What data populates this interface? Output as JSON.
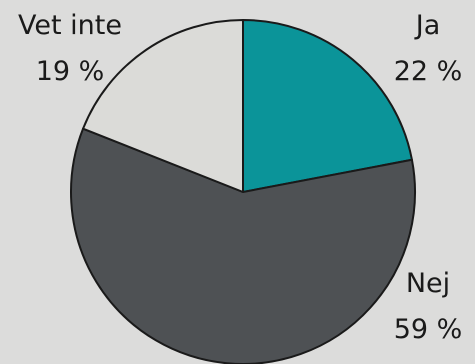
{
  "chart_data": {
    "type": "pie",
    "title": "",
    "categories": [
      "Ja",
      "Nej",
      "Vet inte"
    ],
    "values": [
      22,
      59,
      19
    ],
    "value_labels": [
      "22 %",
      "59 %",
      "19 %"
    ],
    "colors": [
      "#0b9499",
      "#4e5154",
      "#dbdbd8"
    ],
    "start_angle_deg": 0,
    "direction": "clockwise",
    "legend": "none"
  }
}
